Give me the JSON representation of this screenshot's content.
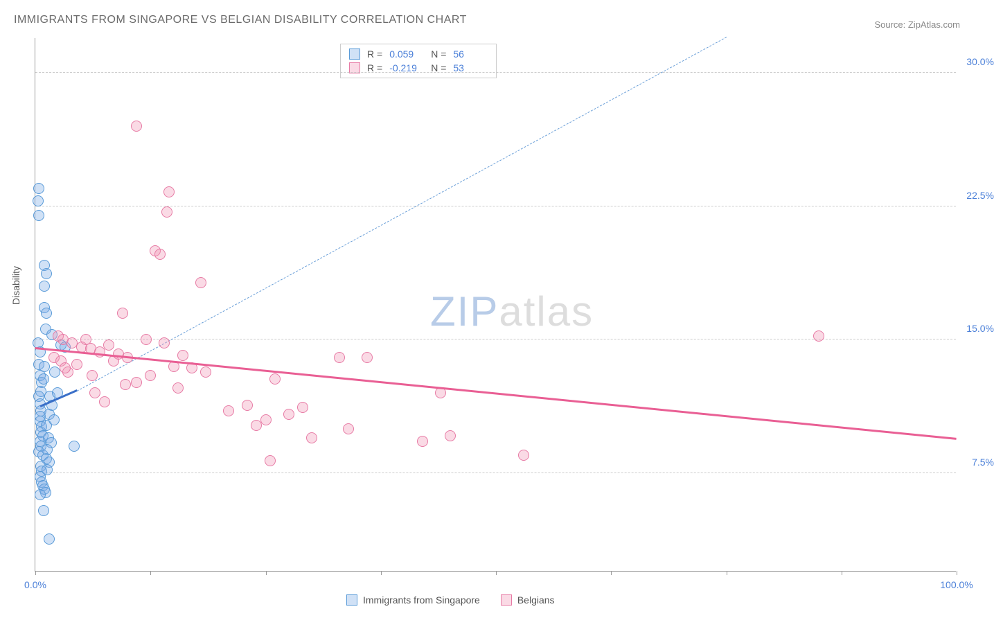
{
  "title": "IMMIGRANTS FROM SINGAPORE VS BELGIAN DISABILITY CORRELATION CHART",
  "source": "Source: ZipAtlas.com",
  "y_axis_label": "Disability",
  "watermark_a": "ZIP",
  "watermark_b": "atlas",
  "chart": {
    "type": "scatter",
    "background_color": "#ffffff",
    "grid_color": "#cccccc",
    "axis_color": "#999999",
    "tick_label_color": "#4a7fd8",
    "x_min": 0.0,
    "x_max": 100.0,
    "y_min": 2.0,
    "y_max": 32.0,
    "y_ticks": [
      7.5,
      15.0,
      22.5,
      30.0
    ],
    "y_tick_labels": [
      "7.5%",
      "15.0%",
      "22.5%",
      "30.0%"
    ],
    "x_tick_positions": [
      0,
      12.5,
      25,
      37.5,
      50,
      62.5,
      75,
      87.5,
      100
    ],
    "x_min_label": "0.0%",
    "x_max_label": "100.0%",
    "point_radius": 8,
    "series": [
      {
        "name": "Immigrants from Singapore",
        "color_fill": "rgba(120,170,230,0.35)",
        "color_stroke": "#5a9bd8",
        "R": "0.059",
        "N": "56",
        "trend": {
          "x1": 0.5,
          "y1": 11.2,
          "x2": 4.5,
          "y2": 12.1,
          "style": "solid",
          "color": "#3a6fc8"
        },
        "extrapolation": {
          "x1": 4.5,
          "y1": 12.1,
          "x2": 75,
          "y2": 32.0,
          "style": "dashed",
          "color": "#6a9fd8"
        },
        "points": [
          [
            0.4,
            23.5
          ],
          [
            0.3,
            22.8
          ],
          [
            0.4,
            22.0
          ],
          [
            1.0,
            19.2
          ],
          [
            1.2,
            18.7
          ],
          [
            1.0,
            18.0
          ],
          [
            1.0,
            16.8
          ],
          [
            1.2,
            16.5
          ],
          [
            1.1,
            15.6
          ],
          [
            1.8,
            15.3
          ],
          [
            2.8,
            14.7
          ],
          [
            3.2,
            14.6
          ],
          [
            0.3,
            14.8
          ],
          [
            0.5,
            14.3
          ],
          [
            0.4,
            13.6
          ],
          [
            0.5,
            13.0
          ],
          [
            0.7,
            12.6
          ],
          [
            0.6,
            12.1
          ],
          [
            0.4,
            11.8
          ],
          [
            0.5,
            11.4
          ],
          [
            0.6,
            11.0
          ],
          [
            0.5,
            10.7
          ],
          [
            0.5,
            10.4
          ],
          [
            0.7,
            10.1
          ],
          [
            0.6,
            9.8
          ],
          [
            0.8,
            9.6
          ],
          [
            0.5,
            9.3
          ],
          [
            0.6,
            9.0
          ],
          [
            0.4,
            8.7
          ],
          [
            0.8,
            8.5
          ],
          [
            4.2,
            9.0
          ],
          [
            1.2,
            8.3
          ],
          [
            1.5,
            8.1
          ],
          [
            0.6,
            7.9
          ],
          [
            0.7,
            7.6
          ],
          [
            1.3,
            7.7
          ],
          [
            0.5,
            7.3
          ],
          [
            0.7,
            7.0
          ],
          [
            0.8,
            6.8
          ],
          [
            1.0,
            6.6
          ],
          [
            1.1,
            6.4
          ],
          [
            0.5,
            6.3
          ],
          [
            0.9,
            5.4
          ],
          [
            1.5,
            3.8
          ],
          [
            1.6,
            11.8
          ],
          [
            1.8,
            11.3
          ],
          [
            2.1,
            13.2
          ],
          [
            2.4,
            12.0
          ],
          [
            1.5,
            10.8
          ],
          [
            1.2,
            10.2
          ],
          [
            1.0,
            13.5
          ],
          [
            0.9,
            12.8
          ],
          [
            1.4,
            9.5
          ],
          [
            1.7,
            9.2
          ],
          [
            2.0,
            10.5
          ],
          [
            1.3,
            8.8
          ]
        ]
      },
      {
        "name": "Belgians",
        "color_fill": "rgba(240,150,180,0.35)",
        "color_stroke": "#e77ba5",
        "R": "-0.219",
        "N": "53",
        "trend": {
          "x1": 0,
          "y1": 14.5,
          "x2": 100,
          "y2": 9.4,
          "style": "solid",
          "color": "#e95f94"
        },
        "points": [
          [
            11.0,
            27.0
          ],
          [
            14.5,
            23.3
          ],
          [
            14.3,
            22.2
          ],
          [
            13.0,
            20.0
          ],
          [
            13.5,
            19.8
          ],
          [
            18.0,
            18.2
          ],
          [
            9.5,
            16.5
          ],
          [
            2.5,
            15.2
          ],
          [
            3.0,
            15.0
          ],
          [
            4.0,
            14.8
          ],
          [
            5.0,
            14.6
          ],
          [
            5.5,
            15.0
          ],
          [
            6.0,
            14.5
          ],
          [
            7.0,
            14.3
          ],
          [
            8.0,
            14.7
          ],
          [
            8.5,
            13.8
          ],
          [
            9.0,
            14.2
          ],
          [
            10.0,
            14.0
          ],
          [
            12.0,
            15.0
          ],
          [
            14.0,
            14.8
          ],
          [
            15.0,
            13.5
          ],
          [
            16.0,
            14.1
          ],
          [
            17.0,
            13.4
          ],
          [
            12.5,
            13.0
          ],
          [
            6.5,
            12.0
          ],
          [
            7.5,
            11.5
          ],
          [
            33.0,
            14.0
          ],
          [
            36.0,
            14.0
          ],
          [
            85.0,
            15.2
          ],
          [
            21.0,
            11.0
          ],
          [
            23.0,
            11.3
          ],
          [
            24.0,
            10.2
          ],
          [
            25.0,
            10.5
          ],
          [
            26.0,
            12.8
          ],
          [
            27.5,
            10.8
          ],
          [
            29.0,
            11.2
          ],
          [
            34.0,
            10.0
          ],
          [
            45.0,
            9.6
          ],
          [
            44.0,
            12.0
          ],
          [
            42.0,
            9.3
          ],
          [
            53.0,
            8.5
          ],
          [
            30.0,
            9.5
          ],
          [
            25.5,
            8.2
          ],
          [
            3.5,
            13.2
          ],
          [
            4.5,
            13.6
          ],
          [
            11.0,
            12.6
          ],
          [
            18.5,
            13.2
          ],
          [
            2.0,
            14.0
          ],
          [
            2.8,
            13.8
          ],
          [
            3.2,
            13.4
          ],
          [
            6.2,
            13.0
          ],
          [
            9.8,
            12.5
          ],
          [
            15.5,
            12.3
          ]
        ]
      }
    ]
  },
  "stats_labels": {
    "R": "R  =",
    "N": "N  ="
  },
  "bottom_legend": [
    {
      "color": "blue",
      "label": "Immigrants from Singapore"
    },
    {
      "color": "pink",
      "label": "Belgians"
    }
  ]
}
